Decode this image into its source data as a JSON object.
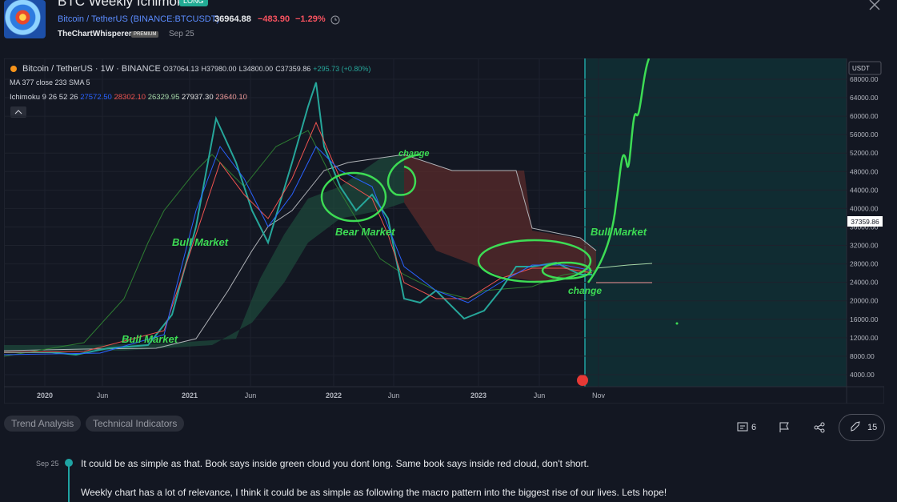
{
  "header": {
    "title": "BTC Weekly Ichimoku",
    "badge": "LONG",
    "symbol": "Bitcoin / TetherUS",
    "exchange": "(BINANCE:BTCUSDT)",
    "price": "36964.88",
    "change": "−483.90",
    "change_percent": "−1.29%",
    "author": "TheChartWhisperer",
    "author_badge": "PREMIUM",
    "date": "Sep 25"
  },
  "chart": {
    "legend": {
      "symbol": "Bitcoin / TetherUS · 1W · BINANCE",
      "open": "O37064.13",
      "high": "H37980.00",
      "low": "L34800.00",
      "close": "C37359.86",
      "change": "+295.73 (+0.80%)",
      "ma": "MA 377 close 233 SMA 5",
      "ichimoku": "Ichimoku 9 26 52 26",
      "ichimoku_values": [
        "27572.50",
        "28302.10",
        "26329.95",
        "27937.30",
        "23640.10"
      ]
    },
    "price_axis": {
      "currency": "USDT",
      "ticks": [
        "68000.00",
        "64000.00",
        "60000.00",
        "56000.00",
        "52000.00",
        "48000.00",
        "44000.00",
        "40000.00",
        "36000.00",
        "32000.00",
        "28000.00",
        "24000.00",
        "20000.00",
        "16000.00",
        "12000.00",
        "8000.00",
        "4000.00"
      ],
      "last_price": "37359.86"
    },
    "time_axis": [
      "2020",
      "Jun",
      "2021",
      "Jun",
      "2022",
      "Jun",
      "2023",
      "Jun",
      "Nov"
    ],
    "annotations": [
      "change",
      "Bull Market",
      "Bear Market",
      "Bull Market",
      "Bull Market",
      "change"
    ]
  },
  "tags": [
    "Trend Analysis",
    "Technical Indicators"
  ],
  "actions": {
    "comments": "6",
    "boosts": "15"
  },
  "post": {
    "date": "Sep 25",
    "paragraphs": [
      "It could be as simple as that. Book says inside green cloud you dont long. Same book says inside red cloud, don't short.",
      "Weekly chart has a lot of relevance, I think it could be as simple as following the macro pattern into the biggest rise of our lives. Lets hope!"
    ]
  }
}
